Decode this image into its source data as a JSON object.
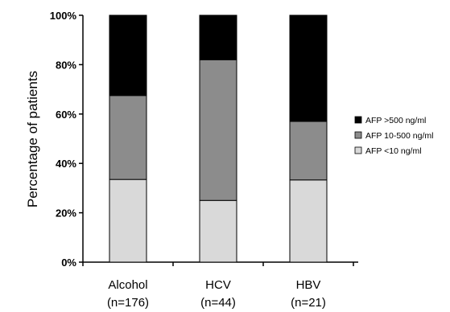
{
  "chart_data": {
    "type": "bar",
    "stacked": true,
    "percent_stacked": true,
    "title": "",
    "xlabel": "",
    "ylabel": "Percentage of patients",
    "ylim": [
      0,
      100
    ],
    "y_ticks": [
      "0%",
      "20%",
      "40%",
      "60%",
      "80%",
      "100%"
    ],
    "categories": [
      [
        "Alcohol",
        "(n=176)"
      ],
      [
        "HCV",
        "(n=44)"
      ],
      [
        "HBV",
        "(n=21)"
      ]
    ],
    "series": [
      {
        "name": "AFP <10 ng/ml",
        "values": [
          33.5,
          25,
          33.3
        ],
        "color": "#d9d9d9"
      },
      {
        "name": "AFP 10-500  ng/ml",
        "values": [
          34,
          57,
          23.7
        ],
        "color": "#8c8c8c"
      },
      {
        "name": "AFP >500  ng/ml",
        "values": [
          32.5,
          18,
          43
        ],
        "color": "#000000"
      }
    ],
    "legend_order": [
      2,
      1,
      0
    ],
    "legend_position": "right",
    "grid": false
  }
}
